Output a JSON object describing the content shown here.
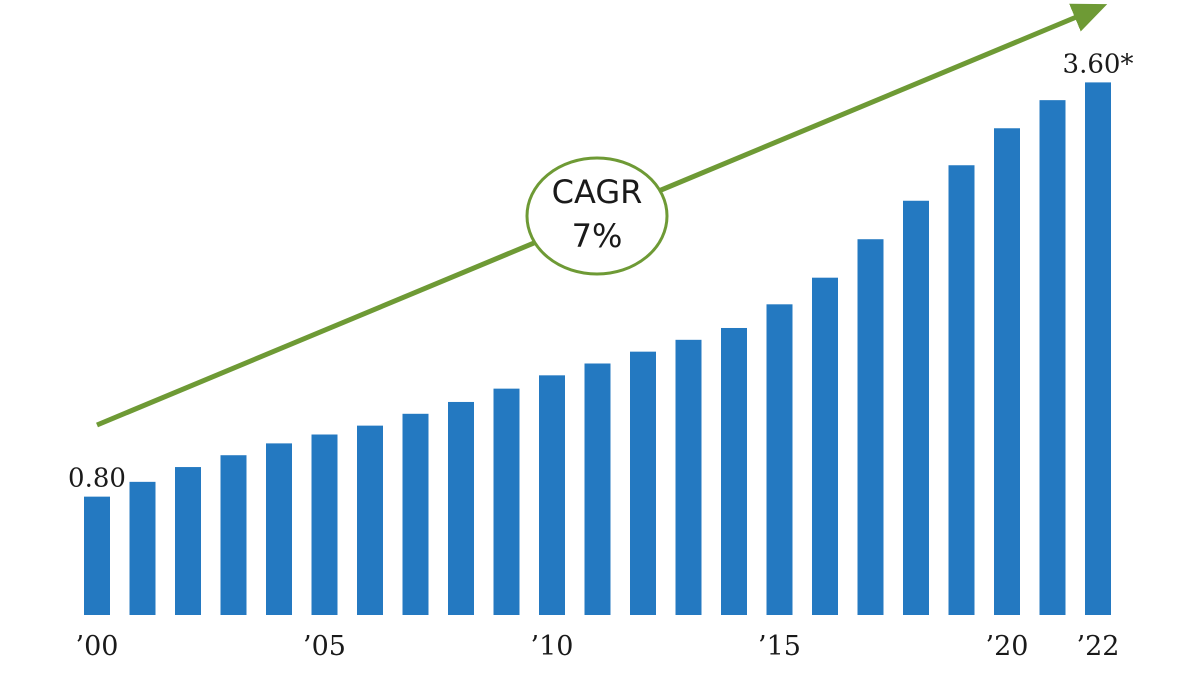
{
  "chart_data": {
    "type": "bar",
    "categories": [
      "2000",
      "2001",
      "2002",
      "2003",
      "2004",
      "2005",
      "2006",
      "2007",
      "2008",
      "2009",
      "2010",
      "2011",
      "2012",
      "2013",
      "2014",
      "2015",
      "2016",
      "2017",
      "2018",
      "2019",
      "2020",
      "2021",
      "2022"
    ],
    "values": [
      0.8,
      0.9,
      1.0,
      1.08,
      1.16,
      1.22,
      1.28,
      1.36,
      1.44,
      1.53,
      1.62,
      1.7,
      1.78,
      1.86,
      1.94,
      2.1,
      2.28,
      2.54,
      2.8,
      3.04,
      3.29,
      3.48,
      3.6
    ],
    "x_tick_labels": [
      {
        "category": "2000",
        "label": "’00"
      },
      {
        "category": "2005",
        "label": "’05"
      },
      {
        "category": "2010",
        "label": "’10"
      },
      {
        "category": "2015",
        "label": "’15"
      },
      {
        "category": "2020",
        "label": "’20"
      },
      {
        "category": "2022",
        "label": "’22"
      }
    ],
    "data_labels": [
      {
        "category": "2000",
        "text": "0.80"
      },
      {
        "category": "2022",
        "text": "3.60*"
      }
    ],
    "annotation": {
      "line1": "CAGR",
      "line2": "7%"
    },
    "ylim": [
      0,
      3.65
    ],
    "grid": false,
    "legend": "none",
    "colors": {
      "bar": "#2479c1",
      "trend": "#6e9a35",
      "circle_border": "#6e9a35"
    }
  }
}
